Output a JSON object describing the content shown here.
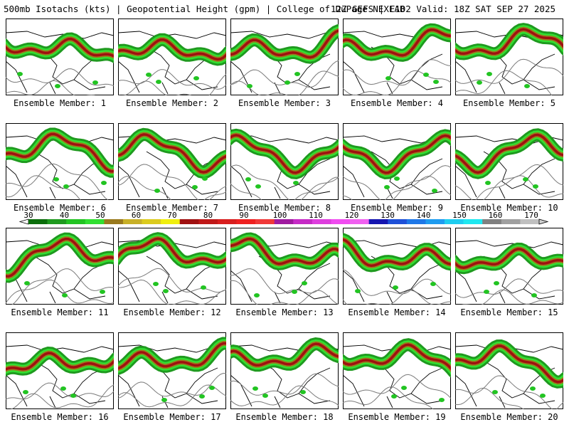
{
  "header": {
    "left": "500mb Isotachs (kts) | Geopotential Height (gpm) | College of DuPage NEXLAB",
    "right": "12Z GEFS | F102 Valid: 18Z SAT SEP 27 2025"
  },
  "caption_prefix": "Ensemble Member:",
  "members": [
    "1",
    "2",
    "3",
    "4",
    "5",
    "6",
    "7",
    "8",
    "9",
    "10",
    "11",
    "12",
    "13",
    "14",
    "15",
    "16",
    "17",
    "18",
    "19",
    "20"
  ],
  "colorbar": {
    "labels": [
      "30",
      "40",
      "50",
      "60",
      "70",
      "80",
      "90",
      "100",
      "110",
      "120",
      "130",
      "140",
      "150",
      "160",
      "170"
    ],
    "colors": [
      "#0b6e0b",
      "#1f9a1f",
      "#22c422",
      "#31e031",
      "#9a7a1e",
      "#c8b028",
      "#dccb1e",
      "#f0ef0e",
      "#a01010",
      "#c01818",
      "#d81e1e",
      "#ee2020",
      "#f03838",
      "#a01aa0",
      "#c62ac6",
      "#de3ede",
      "#f04cf0",
      "#f060f0",
      "#1515b0",
      "#1e50d8",
      "#1e78e8",
      "#1e9cf0",
      "#1ecdf0",
      "#1ee8f0",
      "#808080",
      "#a0a0a0",
      "#c0c0c0"
    ]
  }
}
